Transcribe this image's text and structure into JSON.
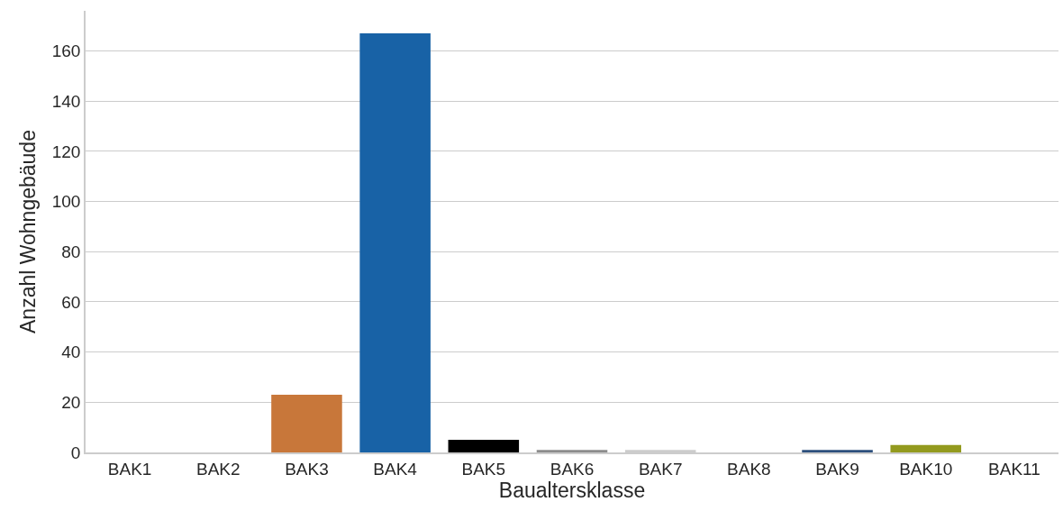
{
  "chart_data": {
    "type": "bar",
    "xlabel": "Baualtersklasse",
    "ylabel": "Anzahl Wohngebäude",
    "categories": [
      "BAK1",
      "BAK2",
      "BAK3",
      "BAK4",
      "BAK5",
      "BAK6",
      "BAK7",
      "BAK8",
      "BAK9",
      "BAK10",
      "BAK11"
    ],
    "values": [
      0,
      0,
      23,
      167,
      5,
      1,
      1,
      0,
      1,
      3,
      0
    ],
    "colors": [
      "#999999",
      "#999999",
      "#c8773a",
      "#1862a6",
      "#000000",
      "#8c8c8c",
      "#cccccc",
      "#999999",
      "#2c4f7c",
      "#939a1e",
      "#999999"
    ],
    "ylim": [
      0,
      176
    ],
    "yticks": [
      0,
      20,
      40,
      60,
      80,
      100,
      120,
      140,
      160
    ],
    "grid": "y",
    "legend": false
  }
}
